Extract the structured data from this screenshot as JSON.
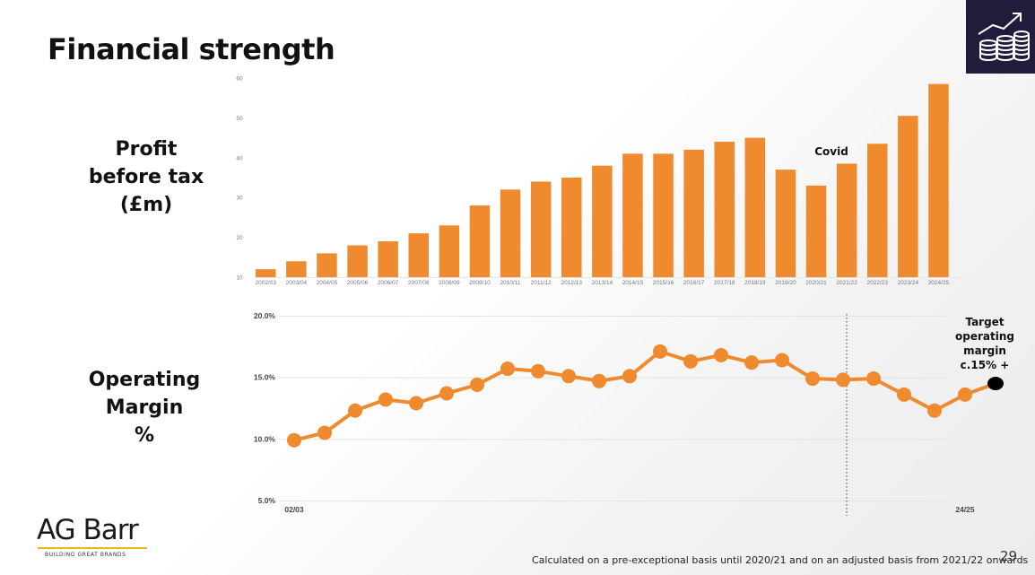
{
  "slide": {
    "title": "Financial strength",
    "page_number": "29",
    "footnote": "Calculated on a pre-exceptional basis until 2020/21 and on an adjusted basis from 2021/22 onwards"
  },
  "labels": {
    "profit_lines": [
      "Profit",
      "before tax",
      "(£m)"
    ],
    "margin_lines": [
      "Operating",
      "Margin",
      "%"
    ]
  },
  "logo": {
    "name": "AG Barr",
    "tagline": "BUILDING GREAT BRANDS"
  },
  "icon": {
    "name": "growth-coins-icon"
  },
  "colors": {
    "accent": "#ef8a2e",
    "navy": "#1f1c3c",
    "gold": "#f2b21a"
  },
  "chart_data": [
    {
      "type": "bar",
      "title": "Profit before tax (£m)",
      "categories": [
        "2002/03",
        "2003/04",
        "2004/05",
        "2005/06",
        "2006/07",
        "2007/08",
        "2008/09",
        "2009/10",
        "2010/11",
        "2011/12",
        "2012/13",
        "2013/14",
        "2014/15",
        "2015/16",
        "2016/17",
        "2017/18",
        "2018/19",
        "2019/20",
        "2020/21",
        "2021/22",
        "2022/23",
        "2023/24",
        "2024/25"
      ],
      "values": [
        12,
        14,
        16,
        18,
        19,
        21,
        23,
        28,
        32,
        34,
        35,
        38,
        41,
        41,
        42,
        44,
        45,
        37,
        33,
        38.5,
        43.5,
        50.5,
        58.5
      ],
      "ylim": [
        10,
        60
      ],
      "yticks": [
        10,
        20,
        30,
        40,
        50,
        60
      ],
      "annotations": [
        {
          "text": "Covid",
          "category": "2020/21"
        }
      ],
      "grid": false
    },
    {
      "type": "line",
      "title": "Operating Margin %",
      "x": [
        "02/03",
        "03/04",
        "04/05",
        "05/06",
        "06/07",
        "07/08",
        "08/09",
        "09/10",
        "10/11",
        "11/12",
        "12/13",
        "13/14",
        "14/15",
        "15/16",
        "16/17",
        "17/18",
        "18/19",
        "19/20",
        "20/21",
        "21/22",
        "22/23",
        "23/24",
        "24/25"
      ],
      "values": [
        9.9,
        10.5,
        12.3,
        13.2,
        12.9,
        13.7,
        14.4,
        15.7,
        15.5,
        15.1,
        14.7,
        15.1,
        17.1,
        16.3,
        16.8,
        16.2,
        16.4,
        14.9,
        14.8,
        14.9,
        13.6,
        12.3,
        13.6
      ],
      "target_point": {
        "x": "25/26",
        "value": 14.5
      },
      "ylim": [
        5.0,
        20.0
      ],
      "yticks": [
        "5.0%",
        "10.0%",
        "15.0%",
        "20.0%"
      ],
      "ytick_values": [
        5,
        10,
        15,
        20
      ],
      "x_labels_shown": [
        "02/03",
        "24/25"
      ],
      "target_label_lines": [
        "Target",
        "operating",
        "margin",
        "c.15% +"
      ],
      "grid": true
    }
  ]
}
